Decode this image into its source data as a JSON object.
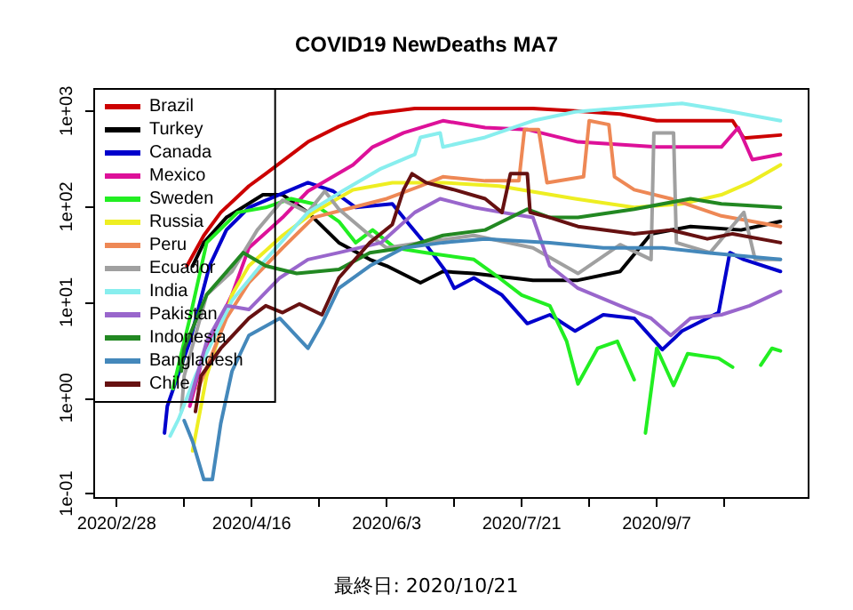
{
  "chart_data": {
    "type": "line",
    "title": "COVID19 NewDeaths MA7",
    "annotations": [
      "最終日: 2020/10/21"
    ],
    "log": "y",
    "legend": "top left",
    "line_style": "solid",
    "xlim": [
      "2020-02-20",
      "2020-10-31"
    ],
    "xticks": [
      {
        "value": "2020-02-28",
        "label": "2020/2/28"
      },
      {
        "value": "2020-03-23",
        "label": null
      },
      {
        "value": "2020-04-16",
        "label": "2020/4/16"
      },
      {
        "value": "2020-05-10",
        "label": null
      },
      {
        "value": "2020-06-03",
        "label": "2020/6/3"
      },
      {
        "value": "2020-06-27",
        "label": null
      },
      {
        "value": "2020-07-21",
        "label": "2020/7/21"
      },
      {
        "value": "2020-08-14",
        "label": null
      },
      {
        "value": "2020-09-07",
        "label": "2020/9/7"
      },
      {
        "value": "2020-10-01",
        "label": null
      }
    ],
    "ylim": [
      0.09,
      1700
    ],
    "yticks": [
      {
        "value": 0.1,
        "label": "1e-01"
      },
      {
        "value": 1,
        "label": "1e+00"
      },
      {
        "value": 10,
        "label": "1e+01"
      },
      {
        "value": 100,
        "label": "1e+02"
      },
      {
        "value": 1000,
        "label": "1e+03"
      }
    ],
    "series": [
      {
        "name": "Brazil",
        "color": "#cc0000",
        "x": [
          "2020-03-24",
          "2020-03-30",
          "2020-04-05",
          "2020-04-15",
          "2020-04-21",
          "2020-05-06",
          "2020-05-17",
          "2020-05-28",
          "2020-06-13",
          "2020-07-08",
          "2020-07-25",
          "2020-08-09",
          "2020-08-25",
          "2020-09-07",
          "2020-10-04",
          "2020-10-08",
          "2020-10-21"
        ],
        "values": [
          24,
          50,
          87,
          164,
          221,
          475,
          690,
          930,
          1060,
          1060,
          1060,
          1000,
          930,
          790,
          790,
          520,
          560
        ]
      },
      {
        "name": "Turkey",
        "color": "#000000",
        "x": [
          "2020-03-26",
          "2020-03-30",
          "2020-04-07",
          "2020-04-20",
          "2020-04-27",
          "2020-05-06",
          "2020-05-17",
          "2020-05-28",
          "2020-06-03",
          "2020-06-15",
          "2020-06-23",
          "2020-07-04",
          "2020-07-25",
          "2020-08-10",
          "2020-08-25",
          "2020-09-05",
          "2020-09-19",
          "2020-10-07",
          "2020-10-21"
        ],
        "values": [
          24,
          42,
          77,
          133,
          133,
          87,
          42,
          28,
          24,
          16,
          21,
          20,
          17,
          17,
          21,
          52,
          62,
          57,
          70
        ]
      },
      {
        "name": "Canada",
        "color": "#0000cc",
        "x": [
          "2020-03-16",
          "2020-03-17",
          "2020-03-25",
          "2020-04-01",
          "2020-04-07",
          "2020-04-15",
          "2020-05-06",
          "2020-05-15",
          "2020-05-23",
          "2020-06-05",
          "2020-06-11",
          "2020-06-17",
          "2020-06-24",
          "2020-06-27",
          "2020-07-04",
          "2020-07-14",
          "2020-07-23",
          "2020-07-31",
          "2020-08-09",
          "2020-08-19",
          "2020-08-30",
          "2020-09-09",
          "2020-09-16",
          "2020-09-29",
          "2020-10-03",
          "2020-10-08",
          "2020-10-21"
        ],
        "values": [
          0.43,
          0.82,
          3.9,
          24,
          57,
          98,
          178,
          145,
          98,
          107,
          65,
          40,
          21,
          14,
          18,
          11.9,
          6,
          7.4,
          5,
          7.4,
          6.8,
          3.2,
          5,
          7.8,
          33,
          28,
          21
        ]
      },
      {
        "name": "Mexico",
        "color": "#dd1199",
        "x": [
          "2020-03-25",
          "2020-03-30",
          "2020-04-09",
          "2020-04-15",
          "2020-04-27",
          "2020-05-06",
          "2020-05-22",
          "2020-05-29",
          "2020-06-09",
          "2020-06-23",
          "2020-07-08",
          "2020-07-23",
          "2020-08-10",
          "2020-09-07",
          "2020-09-30",
          "2020-10-06",
          "2020-10-11",
          "2020-10-21"
        ],
        "values": [
          0.82,
          2.9,
          12,
          37,
          77,
          145,
          273,
          420,
          590,
          790,
          670,
          640,
          475,
          420,
          420,
          670,
          310,
          352
        ]
      },
      {
        "name": "Sweden",
        "color": "#22ee22",
        "x": [
          "2020-03-19",
          "2020-03-25",
          "2020-03-31",
          "2020-04-11",
          "2020-04-21",
          "2020-04-30",
          "2020-05-08",
          "2020-05-17",
          "2020-05-23",
          "2020-05-29",
          "2020-06-06",
          "2020-06-17",
          "2020-07-04",
          "2020-07-13",
          "2020-07-21",
          "2020-07-31",
          "2020-08-06",
          "2020-08-10",
          "2020-08-17",
          "2020-08-24",
          "2020-08-30",
          "2020-09-01",
          "2020-09-03",
          "2020-09-07",
          "2020-09-13",
          "2020-09-18",
          "2020-09-29",
          "2020-10-04",
          "2020-10-09",
          "2020-10-14",
          "2020-10-18",
          "2020-10-21"
        ],
        "values": [
          1.25,
          6.8,
          42,
          87,
          98,
          121,
          107,
          70,
          42,
          57,
          37,
          33,
          28,
          18,
          11.9,
          9.2,
          3.9,
          1.4,
          3.3,
          3.9,
          1.55,
          null,
          0.43,
          3.3,
          1.35,
          2.9,
          2.6,
          2.1,
          null,
          2.2,
          3.3,
          3.1
        ]
      },
      {
        "name": "Russia",
        "color": "#eeee22",
        "x": [
          "2020-03-26",
          "2020-03-31",
          "2020-04-09",
          "2020-04-15",
          "2020-04-27",
          "2020-05-08",
          "2020-05-22",
          "2020-06-05",
          "2020-06-23",
          "2020-07-13",
          "2020-08-09",
          "2020-08-30",
          "2020-09-16",
          "2020-09-30",
          "2020-10-10",
          "2020-10-21"
        ],
        "values": [
          0.28,
          1.7,
          12,
          24,
          50,
          87,
          150,
          178,
          178,
          164,
          121,
          98,
          107,
          133,
          178,
          273
        ]
      },
      {
        "name": "Peru",
        "color": "#ee8855",
        "x": [
          "2020-03-28",
          "2020-04-07",
          "2020-04-15",
          "2020-04-27",
          "2020-05-08",
          "2020-05-22",
          "2020-06-03",
          "2020-06-15",
          "2020-06-23",
          "2020-07-08",
          "2020-07-20",
          "2020-07-22",
          "2020-07-27",
          "2020-07-30",
          "2020-08-12",
          "2020-08-14",
          "2020-08-21",
          "2020-08-23",
          "2020-08-30",
          "2020-09-12",
          "2020-09-30",
          "2020-10-21"
        ],
        "values": [
          1.25,
          6.8,
          16,
          37,
          77,
          98,
          121,
          164,
          205,
          186,
          186,
          640,
          640,
          178,
          205,
          790,
          720,
          205,
          150,
          121,
          80,
          62
        ]
      },
      {
        "name": "Ecuador",
        "color": "#a0a0a0",
        "x": [
          "2020-03-22",
          "2020-03-23",
          "2020-03-31",
          "2020-04-09",
          "2020-04-18",
          "2020-04-27",
          "2020-05-06",
          "2020-05-12",
          "2020-05-17",
          "2020-05-28",
          "2020-06-03",
          "2020-06-15",
          "2020-07-04",
          "2020-07-25",
          "2020-08-10",
          "2020-08-25",
          "2020-09-05",
          "2020-09-06",
          "2020-09-13",
          "2020-09-14",
          "2020-09-26",
          "2020-10-08",
          "2020-10-12",
          "2020-10-21"
        ],
        "values": [
          0.72,
          1.7,
          12,
          21,
          57,
          117,
          87,
          145,
          94,
          50,
          37,
          42,
          50,
          37,
          20,
          40,
          28,
          590,
          590,
          42,
          33,
          87,
          28,
          28
        ]
      },
      {
        "name": "India",
        "color": "#88eeee",
        "x": [
          "2020-03-18",
          "2020-03-21",
          "2020-03-27",
          "2020-04-09",
          "2020-04-21",
          "2020-05-06",
          "2020-05-19",
          "2020-06-01",
          "2020-06-13",
          "2020-06-15",
          "2020-06-22",
          "2020-06-23",
          "2020-07-08",
          "2020-07-25",
          "2020-08-09",
          "2020-08-30",
          "2020-09-16",
          "2020-09-30",
          "2020-10-21"
        ],
        "values": [
          0.4,
          0.6,
          1.7,
          10.4,
          28,
          87,
          150,
          250,
          352,
          530,
          590,
          420,
          530,
          790,
          980,
          1100,
          1200,
          1030,
          790
        ]
      },
      {
        "name": "Pakistan",
        "color": "#9966cc",
        "x": [
          "2020-03-25",
          "2020-03-31",
          "2020-04-07",
          "2020-04-15",
          "2020-04-26",
          "2020-05-06",
          "2020-05-17",
          "2020-06-01",
          "2020-06-13",
          "2020-06-22",
          "2020-07-04",
          "2020-07-14",
          "2020-07-25",
          "2020-07-31",
          "2020-08-10",
          "2020-08-25",
          "2020-09-05",
          "2020-09-12",
          "2020-09-19",
          "2020-09-30",
          "2020-10-10",
          "2020-10-21"
        ],
        "values": [
          0.93,
          3.9,
          9.2,
          8.4,
          18,
          28,
          33,
          42,
          87,
          121,
          98,
          87,
          77,
          24,
          14,
          9.2,
          6.8,
          4.5,
          6.8,
          7.4,
          9.2,
          13
        ]
      },
      {
        "name": "Indonesia",
        "color": "#228822",
        "x": [
          "2020-03-22",
          "2020-03-23",
          "2020-03-31",
          "2020-04-13",
          "2020-04-21",
          "2020-05-02",
          "2020-05-17",
          "2020-05-28",
          "2020-06-09",
          "2020-06-23",
          "2020-07-08",
          "2020-07-23",
          "2020-07-31",
          "2020-08-10",
          "2020-08-30",
          "2020-09-19",
          "2020-09-30",
          "2020-10-21"
        ],
        "values": [
          1.9,
          3.3,
          12,
          33,
          24,
          20,
          22,
          33,
          37,
          50,
          57,
          94,
          77,
          77,
          94,
          121,
          107,
          98
        ]
      },
      {
        "name": "Bangladesh",
        "color": "#4488bb",
        "x": [
          "2020-03-23",
          "2020-03-26",
          "2020-03-30",
          "2020-04-02",
          "2020-04-05",
          "2020-04-09",
          "2020-04-15",
          "2020-04-26",
          "2020-05-06",
          "2020-05-11",
          "2020-05-17",
          "2020-05-28",
          "2020-06-09",
          "2020-06-23",
          "2020-07-08",
          "2020-07-31",
          "2020-08-19",
          "2020-09-09",
          "2020-09-25",
          "2020-10-21"
        ],
        "values": [
          0.58,
          0.35,
          0.14,
          0.14,
          0.54,
          1.9,
          4.5,
          6.8,
          3.3,
          6,
          14,
          24,
          37,
          42,
          46,
          42,
          37,
          37,
          33,
          28
        ]
      },
      {
        "name": "Chile",
        "color": "#661111",
        "x": [
          "2020-03-27",
          "2020-03-29",
          "2020-04-05",
          "2020-04-15",
          "2020-04-21",
          "2020-04-27",
          "2020-05-03",
          "2020-05-11",
          "2020-05-17",
          "2020-05-28",
          "2020-06-05",
          "2020-06-09",
          "2020-06-12",
          "2020-06-17",
          "2020-06-27",
          "2020-07-08",
          "2020-07-14",
          "2020-07-17",
          "2020-07-23",
          "2020-07-24",
          "2020-07-31",
          "2020-08-10",
          "2020-08-30",
          "2020-09-12",
          "2020-09-25",
          "2020-10-04",
          "2020-10-21"
        ],
        "values": [
          0.72,
          1.7,
          3.3,
          6.8,
          9.2,
          7.8,
          9.6,
          7.4,
          18,
          42,
          65,
          150,
          221,
          178,
          150,
          121,
          87,
          221,
          221,
          87,
          77,
          62,
          52,
          57,
          46,
          52,
          42
        ]
      }
    ]
  }
}
